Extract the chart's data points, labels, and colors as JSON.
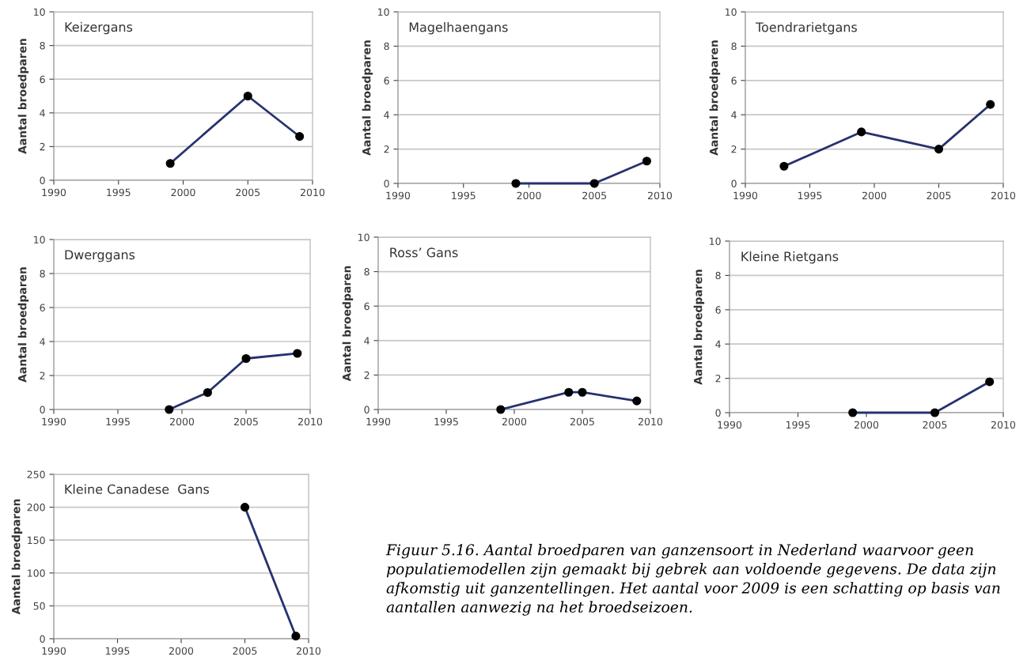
{
  "chart_data": [
    {
      "type": "line",
      "title": "Keizergans",
      "ylabel": "Aantal broedparen",
      "x": [
        1999,
        2005,
        2009
      ],
      "series": [
        {
          "color": "#26316e",
          "values": [
            1,
            5,
            2.6
          ]
        }
      ],
      "xlim": [
        1990,
        2010
      ],
      "xticks": [
        1990,
        1995,
        2000,
        2005,
        2010
      ],
      "ylim": [
        0,
        10
      ],
      "yticks": [
        0,
        2,
        4,
        6,
        8,
        10
      ],
      "grid": "y",
      "marker": "circle",
      "line_style": "solid"
    },
    {
      "type": "line",
      "title": "Magelhaengans",
      "ylabel": "Aantal broedparen",
      "x": [
        1999,
        2005,
        2009
      ],
      "series": [
        {
          "color": "#26316e",
          "values": [
            0,
            0,
            1.3
          ]
        }
      ],
      "xlim": [
        1990,
        2010
      ],
      "xticks": [
        1990,
        1995,
        2000,
        2005,
        2010
      ],
      "ylim": [
        0,
        10
      ],
      "yticks": [
        0,
        2,
        4,
        6,
        8,
        10
      ],
      "grid": "y",
      "marker": "circle",
      "line_style": "solid"
    },
    {
      "type": "line",
      "title": "Toendrarietgans",
      "ylabel": "Aantal broedparen",
      "x": [
        1993,
        1999,
        2005,
        2009
      ],
      "series": [
        {
          "color": "#26316e",
          "values": [
            1,
            3,
            2,
            4.6
          ]
        }
      ],
      "xlim": [
        1990,
        2010
      ],
      "xticks": [
        1990,
        1995,
        2000,
        2005,
        2010
      ],
      "ylim": [
        0,
        10
      ],
      "yticks": [
        0,
        2,
        4,
        6,
        8,
        10
      ],
      "grid": "y",
      "marker": "circle",
      "line_style": "solid"
    },
    {
      "type": "line",
      "title": "Dwerggans",
      "ylabel": "Aantal broedparen",
      "x": [
        1999,
        2002,
        2005,
        2009
      ],
      "series": [
        {
          "color": "#26316e",
          "values": [
            0,
            1,
            3,
            3.3
          ]
        }
      ],
      "xlim": [
        1990,
        2010
      ],
      "xticks": [
        1990,
        1995,
        2000,
        2005,
        2010
      ],
      "ylim": [
        0,
        10
      ],
      "yticks": [
        0,
        2,
        4,
        6,
        8,
        10
      ],
      "grid": "y",
      "marker": "circle",
      "line_style": "solid"
    },
    {
      "type": "line",
      "title": "Ross’ Gans",
      "ylabel": "Aantal broedparen",
      "x": [
        1999,
        2004,
        2005,
        2009
      ],
      "series": [
        {
          "color": "#26316e",
          "values": [
            0,
            1,
            1,
            0.5
          ]
        }
      ],
      "xlim": [
        1990,
        2010
      ],
      "xticks": [
        1990,
        1995,
        2000,
        2005,
        2010
      ],
      "ylim": [
        0,
        10
      ],
      "yticks": [
        0,
        2,
        4,
        6,
        8,
        10
      ],
      "grid": "y",
      "marker": "circle",
      "line_style": "solid"
    },
    {
      "type": "line",
      "title": "Kleine Rietgans",
      "ylabel": "Aantal broedparen",
      "x": [
        1999,
        2005,
        2009
      ],
      "series": [
        {
          "color": "#26316e",
          "values": [
            0,
            0,
            1.8
          ]
        }
      ],
      "xlim": [
        1990,
        2010
      ],
      "xticks": [
        1990,
        1995,
        2000,
        2005,
        2010
      ],
      "ylim": [
        0,
        10
      ],
      "yticks": [
        0,
        2,
        4,
        6,
        8,
        10
      ],
      "grid": "y",
      "marker": "circle",
      "line_style": "solid"
    },
    {
      "type": "line",
      "title": "Kleine Canadese  Gans",
      "ylabel": "Aantal broedparen",
      "x": [
        2005,
        2009
      ],
      "series": [
        {
          "color": "#26316e",
          "values": [
            200,
            4
          ]
        }
      ],
      "xlim": [
        1990,
        2010
      ],
      "xticks": [
        1990,
        1995,
        2000,
        2005,
        2010
      ],
      "ylim": [
        0,
        250
      ],
      "yticks": [
        0,
        50,
        100,
        150,
        200,
        250
      ],
      "grid": "y",
      "marker": "circle",
      "line_style": "solid",
      "annotations": [
        "Figuur 5.16. Aantal broedparen van ganzensoort in Nederland waarvoor geen populatiemodellen zijn gemaakt bij gebrek aan voldoende gegevens. De data zijn afkomstig uit ganzentellingen. Het aantal voor 2009 is een schatting op basis van aantallen aanwezig na het broedseizoen."
      ]
    }
  ]
}
